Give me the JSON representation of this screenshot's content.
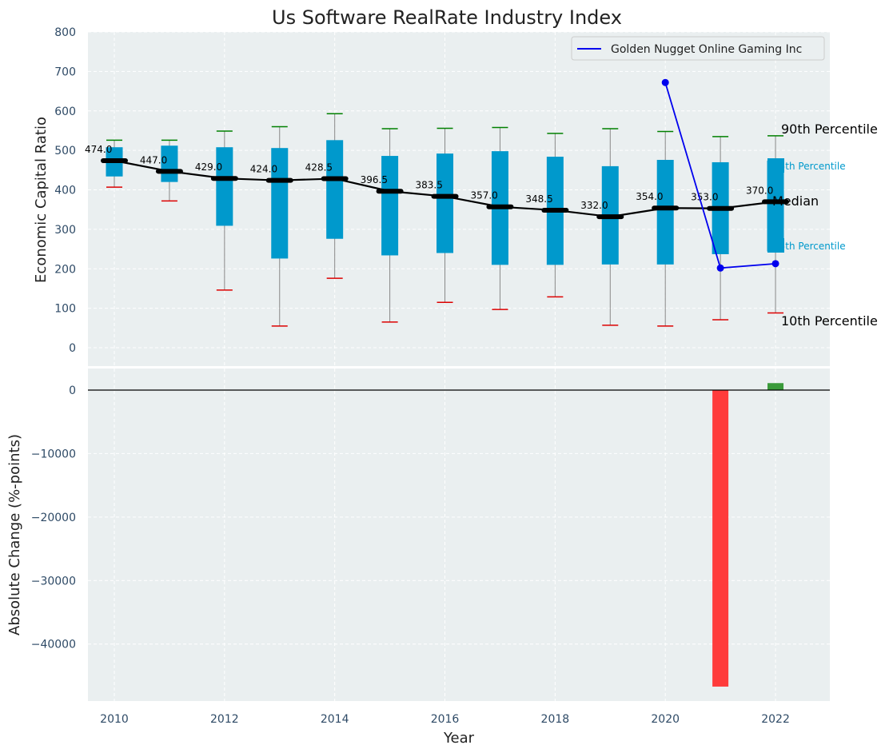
{
  "chart_data": [
    {
      "type": "box",
      "title": "Us Software RealRate Industry Index",
      "xlabel": "",
      "ylabel": "Economic Capital Ratio",
      "ylim": [
        -50,
        800
      ],
      "y_ticks": [
        "0",
        "100",
        "200",
        "300",
        "400",
        "500",
        "600",
        "700",
        "800"
      ],
      "grid": true,
      "legend": {
        "placement": "top-right",
        "entries": [
          "Golden Nugget Online Gaming Inc"
        ]
      },
      "years": [
        2010,
        2011,
        2012,
        2013,
        2014,
        2015,
        2016,
        2017,
        2018,
        2019,
        2020,
        2021,
        2022
      ],
      "p10": [
        407,
        372,
        146,
        55,
        176,
        65,
        115,
        97,
        129,
        57,
        55,
        71,
        88
      ],
      "q25": [
        434,
        420,
        309,
        226,
        276,
        234,
        240,
        210,
        210,
        211,
        211,
        237,
        244
      ],
      "median": [
        474.0,
        447.0,
        429.0,
        424.0,
        428.5,
        396.5,
        383.5,
        357.0,
        348.5,
        332.0,
        354.0,
        353.0,
        370.0
      ],
      "median_labels": [
        "474.0",
        "447.0",
        "429.0",
        "424.0",
        "428.5",
        "396.5",
        "383.5",
        "357.0",
        "348.5",
        "332.0",
        "354.0",
        "353.0",
        "370.0"
      ],
      "q75": [
        508,
        512,
        508,
        506,
        526,
        486,
        492,
        498,
        484,
        460,
        476,
        470,
        474
      ],
      "p90": [
        526,
        526,
        549,
        560,
        593,
        555,
        556,
        558,
        543,
        555,
        548,
        535,
        537
      ],
      "company": {
        "name": "Golden Nugget Online Gaming Inc",
        "color": "#0000ee",
        "points": [
          {
            "x": 2020,
            "y": 672
          },
          {
            "x": 2021,
            "y": 202
          },
          {
            "x": 2022,
            "y": 213
          }
        ]
      },
      "right_labels": {
        "p90": "90th Percentile",
        "q75": "75th Percentile",
        "median": "Median",
        "q25": "25th Percentile",
        "p10": "10th Percentile"
      },
      "colors": {
        "box": "#0099cc",
        "median_line": "#000000",
        "p90_cap": "#008000",
        "p10_cap": "#dd0000",
        "whisker": "#888888",
        "background": "#eaeff0"
      }
    },
    {
      "type": "bar",
      "xlabel": "Year",
      "ylabel": "Absolute Change (%-points)",
      "ylim": [
        -49000,
        1500
      ],
      "y_ticks": [
        "0",
        "−10000",
        "−20000",
        "−30000",
        "−40000"
      ],
      "x_ticks": [
        "2010",
        "2012",
        "2014",
        "2016",
        "2018",
        "2020",
        "2022"
      ],
      "grid": true,
      "bars": [
        {
          "x": 2021,
          "value": -46700
        },
        {
          "x": 2022,
          "value": 1100
        }
      ],
      "colors": {
        "negative": "#ff3b3b",
        "positive": "#3a9a3a"
      }
    }
  ]
}
